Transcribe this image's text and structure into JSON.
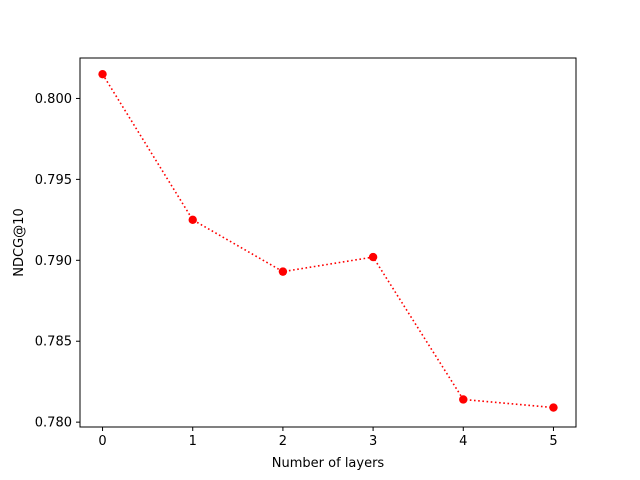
{
  "chart_data": {
    "type": "line",
    "title": "",
    "xlabel": "Number of layers",
    "ylabel": "NDCG@10",
    "x": [
      0,
      1,
      2,
      3,
      4,
      5
    ],
    "x_ticks": [
      "0",
      "1",
      "2",
      "3",
      "4",
      "5"
    ],
    "xlim": [
      -0.25,
      5.25
    ],
    "y_ticks": [
      "0.780",
      "0.785",
      "0.790",
      "0.795",
      "0.800"
    ],
    "y_tick_values": [
      0.78,
      0.785,
      0.79,
      0.795,
      0.8
    ],
    "ylim": [
      0.7797,
      0.8025
    ],
    "grid": false,
    "series": [
      {
        "values": [
          0.8015,
          0.7925,
          0.7893,
          0.7902,
          0.7814,
          0.7809
        ],
        "color": "#ff0000",
        "line_style": "dotted",
        "marker": "circle"
      }
    ]
  }
}
